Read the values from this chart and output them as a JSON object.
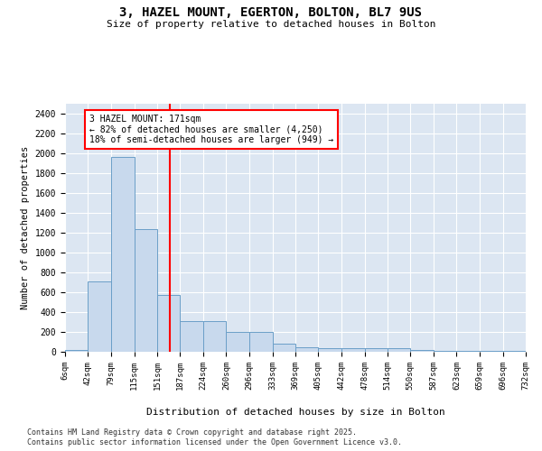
{
  "title": "3, HAZEL MOUNT, EGERTON, BOLTON, BL7 9US",
  "subtitle": "Size of property relative to detached houses in Bolton",
  "xlabel": "Distribution of detached houses by size in Bolton",
  "ylabel": "Number of detached properties",
  "bar_color": "#c8d9ed",
  "bar_edge_color": "#6b9fc8",
  "background_color": "#dce6f2",
  "grid_color": "#ffffff",
  "fig_background": "#ffffff",
  "red_line_x": 171,
  "annotation_text": "3 HAZEL MOUNT: 171sqm\n← 82% of detached houses are smaller (4,250)\n18% of semi-detached houses are larger (949) →",
  "bin_edges": [
    6,
    42,
    79,
    115,
    151,
    187,
    224,
    260,
    296,
    333,
    369,
    405,
    442,
    478,
    514,
    550,
    587,
    623,
    659,
    696,
    732
  ],
  "bar_heights": [
    15,
    710,
    1960,
    1235,
    575,
    305,
    305,
    200,
    200,
    80,
    50,
    40,
    40,
    35,
    35,
    15,
    10,
    5,
    5,
    5
  ],
  "ylim": [
    0,
    2500
  ],
  "yticks": [
    0,
    200,
    400,
    600,
    800,
    1000,
    1200,
    1400,
    1600,
    1800,
    2000,
    2200,
    2400
  ],
  "footnote1": "Contains HM Land Registry data © Crown copyright and database right 2025.",
  "footnote2": "Contains public sector information licensed under the Open Government Licence v3.0."
}
